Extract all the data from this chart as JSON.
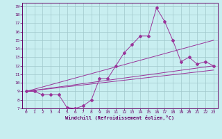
{
  "xlabel": "Windchill (Refroidissement éolien,°C)",
  "background_color": "#c8eef0",
  "line_color": "#993399",
  "xlim": [
    -0.5,
    23.5
  ],
  "ylim": [
    7,
    19.4
  ],
  "xticks": [
    0,
    1,
    2,
    3,
    4,
    5,
    6,
    7,
    8,
    9,
    10,
    11,
    12,
    13,
    14,
    15,
    16,
    17,
    18,
    19,
    20,
    21,
    22,
    23
  ],
  "yticks": [
    7,
    8,
    9,
    10,
    11,
    12,
    13,
    14,
    15,
    16,
    17,
    18,
    19
  ],
  "main_series": {
    "x": [
      0,
      1,
      2,
      3,
      4,
      5,
      6,
      7,
      8,
      9,
      10,
      11,
      12,
      13,
      14,
      15,
      16,
      17,
      18,
      19,
      20,
      21,
      22,
      23
    ],
    "y": [
      9,
      9,
      8.6,
      8.6,
      8.6,
      7.1,
      7.0,
      7.3,
      8.0,
      10.5,
      10.5,
      12.0,
      13.5,
      14.5,
      15.5,
      15.5,
      18.8,
      17.2,
      15.0,
      12.5,
      13.0,
      12.2,
      12.5,
      12.0
    ]
  },
  "straight_lines": [
    {
      "x": [
        0,
        23
      ],
      "y": [
        9.0,
        15.0
      ]
    },
    {
      "x": [
        0,
        23
      ],
      "y": [
        9.0,
        12.0
      ]
    },
    {
      "x": [
        0,
        23
      ],
      "y": [
        9.0,
        11.5
      ]
    }
  ]
}
